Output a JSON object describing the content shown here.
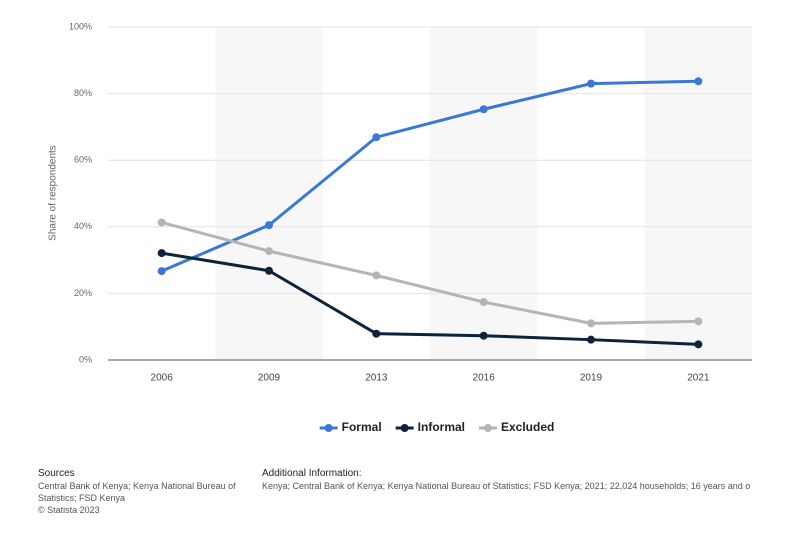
{
  "chart_data": {
    "type": "line",
    "y_label": "Share of respondents",
    "categories": [
      "2006",
      "2009",
      "2013",
      "2016",
      "2019",
      "2021"
    ],
    "series": [
      {
        "name": "Formal",
        "color": "#3a78d8",
        "values": [
          26.7,
          40.5,
          66.9,
          75.3,
          83.0,
          83.7
        ]
      },
      {
        "name": "Informal",
        "color": "#0e2239",
        "values": [
          32.1,
          26.8,
          7.9,
          7.3,
          6.1,
          4.7
        ]
      },
      {
        "name": "Excluded",
        "color": "#b5b5b5",
        "values": [
          41.3,
          32.7,
          25.4,
          17.4,
          11.0,
          11.6
        ]
      }
    ],
    "ylim": [
      0,
      100
    ],
    "yticks": [
      {
        "value": 0,
        "label": "0%"
      },
      {
        "value": 20,
        "label": "20%"
      },
      {
        "value": 40,
        "label": "40%"
      },
      {
        "value": 60,
        "label": "60%"
      },
      {
        "value": 80,
        "label": "80%"
      },
      {
        "value": 100,
        "label": "100%"
      }
    ],
    "grid": true
  },
  "footer": {
    "sources_title": "Sources",
    "sources": "Central Bank of Kenya; Kenya National Bureau of Statistics; FSD Kenya",
    "copyright": "© Statista 2023",
    "additional_title": "Additional Information:",
    "additional": "Kenya; Central Bank of Kenya; Kenya National Bureau of Statistics; FSD Kenya; 2021; 22,024 households; 16 years and o"
  }
}
